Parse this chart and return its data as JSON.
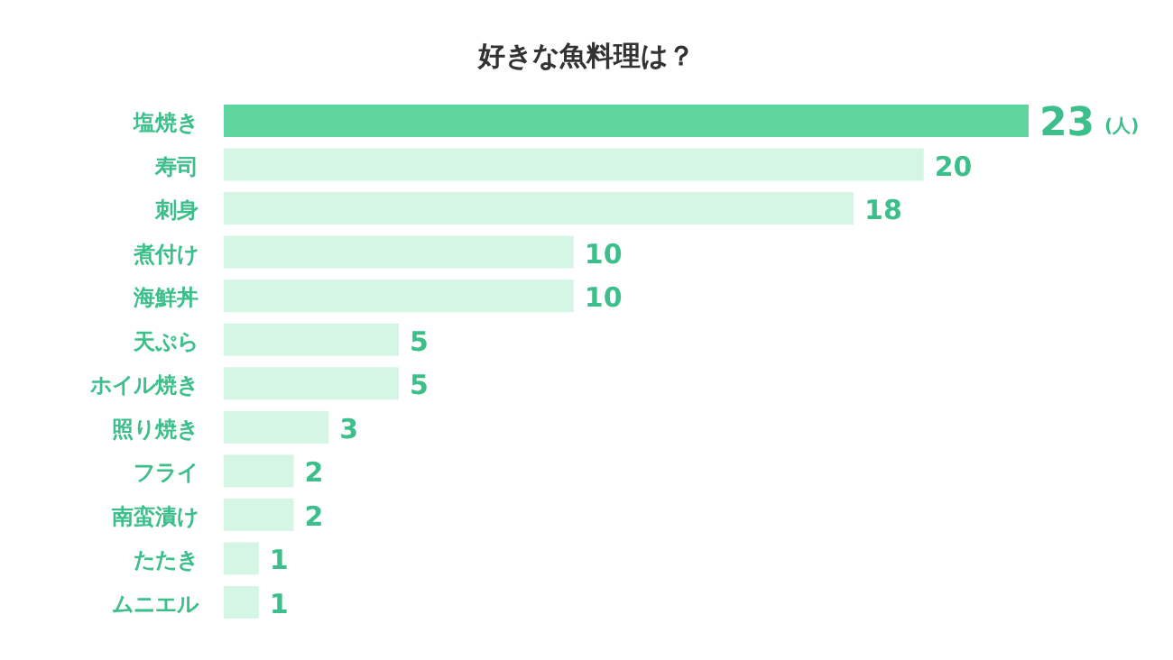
{
  "chart_data": {
    "type": "bar",
    "orientation": "horizontal",
    "title": "好きな魚料理は？",
    "categories": [
      "塩焼き",
      "寿司",
      "刺身",
      "煮付け",
      "海鮮丼",
      "天ぷら",
      "ホイル焼き",
      "照り焼き",
      "フライ",
      "南蛮漬け",
      "たたき",
      "ムニエル"
    ],
    "values": [
      23,
      20,
      18,
      10,
      10,
      5,
      5,
      3,
      2,
      2,
      1,
      1
    ],
    "colors": [
      "#5fd49c",
      "#d5f6e5",
      "#d5f6e5",
      "#d5f6e5",
      "#d5f6e5",
      "#d5f6e5",
      "#d5f6e5",
      "#d5f6e5",
      "#d5f6e5",
      "#d5f6e5",
      "#d5f6e5",
      "#d5f6e5"
    ],
    "data_labels": true,
    "annotations": [
      "(人)"
    ]
  }
}
